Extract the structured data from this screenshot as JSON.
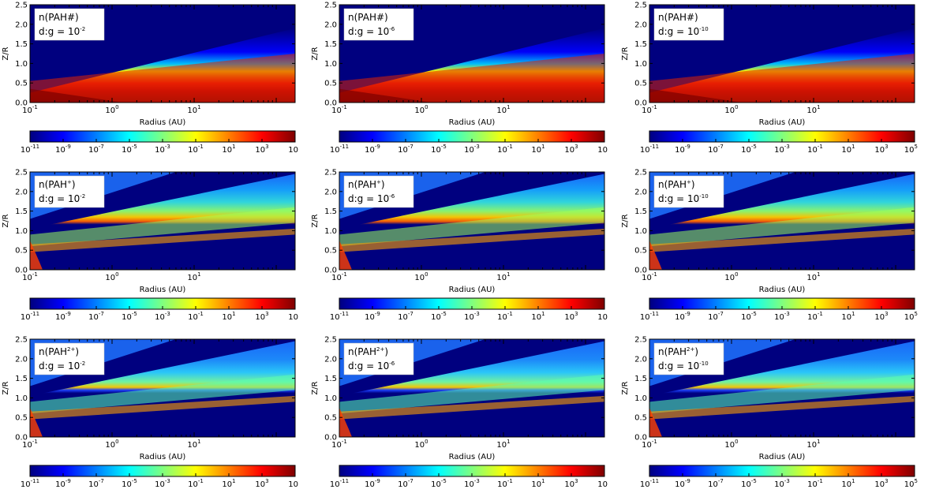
{
  "figure": {
    "xlabel": "Radius (AU)",
    "ylabel": "Z/R",
    "colormap": [
      "#00007f",
      "#0000ff",
      "#007fff",
      "#00ffff",
      "#7fff7f",
      "#ffff00",
      "#ff7f00",
      "#ff0000",
      "#7f0000"
    ]
  },
  "chart_data": [
    {
      "type": "heatmap",
      "row": 0,
      "col": 0,
      "species": "n(PAH#)",
      "dg": "d:g = 10",
      "dg_exp": "-2",
      "xlabel": "Radius (AU)",
      "ylabel": "Z/R",
      "x_scale": "log",
      "xlim": [
        0.1,
        170
      ],
      "ylim": [
        0,
        2.5
      ],
      "x_ticks": [
        {
          "b": "10",
          "e": "-1",
          "v": 0.1
        },
        {
          "b": "10",
          "e": "0",
          "v": 1
        },
        {
          "b": "10",
          "e": "1",
          "v": 10
        }
      ],
      "y_ticks": [
        "0.0",
        "0.5",
        "1.0",
        "1.5",
        "2.0",
        "2.5"
      ],
      "cbar_scale": "log",
      "cbar_range": [
        1e-11,
        100000.0
      ],
      "cbar_ticks": [
        {
          "b": "10",
          "e": "-11"
        },
        {
          "b": "10",
          "e": "-9"
        },
        {
          "b": "10",
          "e": "-7"
        },
        {
          "b": "10",
          "e": "-5"
        },
        {
          "b": "10",
          "e": "-3"
        },
        {
          "b": "10",
          "e": "-1"
        },
        {
          "b": "10",
          "e": "1"
        },
        {
          "b": "10",
          "e": "3"
        },
        {
          "b": "10",
          "e": ""
        }
      ]
    },
    {
      "type": "heatmap",
      "row": 0,
      "col": 1,
      "species": "n(PAH#)",
      "dg": "d:g = 10",
      "dg_exp": "-6",
      "xlabel": "Radius (AU)",
      "ylabel": "Z/R",
      "x_scale": "log",
      "xlim": [
        0.1,
        170
      ],
      "ylim": [
        0,
        2.5
      ],
      "x_ticks": [
        {
          "b": "10",
          "e": "-1",
          "v": 0.1
        },
        {
          "b": "10",
          "e": "0",
          "v": 1
        },
        {
          "b": "10",
          "e": "1",
          "v": 10
        }
      ],
      "y_ticks": [
        "0.0",
        "0.5",
        "1.0",
        "1.5",
        "2.0",
        "2.5"
      ],
      "cbar_scale": "log",
      "cbar_range": [
        1e-11,
        100000.0
      ],
      "cbar_ticks": [
        {
          "b": "10",
          "e": "-11"
        },
        {
          "b": "10",
          "e": "-9"
        },
        {
          "b": "10",
          "e": "-7"
        },
        {
          "b": "10",
          "e": "-5"
        },
        {
          "b": "10",
          "e": "-3"
        },
        {
          "b": "10",
          "e": "-1"
        },
        {
          "b": "10",
          "e": "1"
        },
        {
          "b": "10",
          "e": "3"
        },
        {
          "b": "10",
          "e": ""
        }
      ]
    },
    {
      "type": "heatmap",
      "row": 0,
      "col": 2,
      "species": "n(PAH#)",
      "dg": "d:g = 10",
      "dg_exp": "-10",
      "xlabel": "Radius (AU)",
      "ylabel": "Z/R",
      "x_scale": "log",
      "xlim": [
        0.1,
        170
      ],
      "ylim": [
        0,
        2.5
      ],
      "x_ticks": [
        {
          "b": "10",
          "e": "-1",
          "v": 0.1
        },
        {
          "b": "10",
          "e": "0",
          "v": 1
        },
        {
          "b": "10",
          "e": "1",
          "v": 10
        }
      ],
      "y_ticks": [
        "0.0",
        "0.5",
        "1.0",
        "1.5",
        "2.0",
        "2.5"
      ],
      "cbar_scale": "log",
      "cbar_range": [
        1e-11,
        100000.0
      ],
      "cbar_ticks": [
        {
          "b": "10",
          "e": "-11"
        },
        {
          "b": "10",
          "e": "-9"
        },
        {
          "b": "10",
          "e": "-7"
        },
        {
          "b": "10",
          "e": "-5"
        },
        {
          "b": "10",
          "e": "-3"
        },
        {
          "b": "10",
          "e": "-1"
        },
        {
          "b": "10",
          "e": "1"
        },
        {
          "b": "10",
          "e": "3"
        },
        {
          "b": "10",
          "e": "5"
        }
      ]
    },
    {
      "type": "heatmap",
      "row": 1,
      "col": 0,
      "species": "n(PAH",
      "species_sup": "+",
      "species_end": ")",
      "dg": "d:g = 10",
      "dg_exp": "-2",
      "xlabel": "Radius (AU)",
      "ylabel": "Z/R",
      "x_scale": "log",
      "xlim": [
        0.1,
        170
      ],
      "ylim": [
        0,
        2.5
      ],
      "x_ticks": [
        {
          "b": "10",
          "e": "-1",
          "v": 0.1
        },
        {
          "b": "10",
          "e": "0",
          "v": 1
        },
        {
          "b": "10",
          "e": "1",
          "v": 10
        }
      ],
      "y_ticks": [
        "0.0",
        "0.5",
        "1.0",
        "1.5",
        "2.0",
        "2.5"
      ],
      "cbar_scale": "log",
      "cbar_range": [
        1e-11,
        100000.0
      ],
      "cbar_ticks": [
        {
          "b": "10",
          "e": "-11"
        },
        {
          "b": "10",
          "e": "-9"
        },
        {
          "b": "10",
          "e": "-7"
        },
        {
          "b": "10",
          "e": "-5"
        },
        {
          "b": "10",
          "e": "-3"
        },
        {
          "b": "10",
          "e": "-1"
        },
        {
          "b": "10",
          "e": "1"
        },
        {
          "b": "10",
          "e": "3"
        },
        {
          "b": "10",
          "e": ""
        }
      ]
    },
    {
      "type": "heatmap",
      "row": 1,
      "col": 1,
      "species": "n(PAH",
      "species_sup": "+",
      "species_end": ")",
      "dg": "d:g = 10",
      "dg_exp": "-6",
      "xlabel": "Radius (AU)",
      "ylabel": "Z/R",
      "x_scale": "log",
      "xlim": [
        0.1,
        170
      ],
      "ylim": [
        0,
        2.5
      ],
      "x_ticks": [
        {
          "b": "10",
          "e": "-1",
          "v": 0.1
        },
        {
          "b": "10",
          "e": "0",
          "v": 1
        },
        {
          "b": "10",
          "e": "1",
          "v": 10
        }
      ],
      "y_ticks": [
        "0.0",
        "0.5",
        "1.0",
        "1.5",
        "2.0",
        "2.5"
      ],
      "cbar_scale": "log",
      "cbar_range": [
        1e-11,
        100000.0
      ],
      "cbar_ticks": [
        {
          "b": "10",
          "e": "-11"
        },
        {
          "b": "10",
          "e": "-9"
        },
        {
          "b": "10",
          "e": "-7"
        },
        {
          "b": "10",
          "e": "-5"
        },
        {
          "b": "10",
          "e": "-3"
        },
        {
          "b": "10",
          "e": "-1"
        },
        {
          "b": "10",
          "e": "1"
        },
        {
          "b": "10",
          "e": "3"
        },
        {
          "b": "10",
          "e": ""
        }
      ]
    },
    {
      "type": "heatmap",
      "row": 1,
      "col": 2,
      "species": "n(PAH",
      "species_sup": "+",
      "species_end": ")",
      "dg": "d:g = 10",
      "dg_exp": "-10",
      "xlabel": "Radius (AU)",
      "ylabel": "Z/R",
      "x_scale": "log",
      "xlim": [
        0.1,
        170
      ],
      "ylim": [
        0,
        2.5
      ],
      "x_ticks": [
        {
          "b": "10",
          "e": "-1",
          "v": 0.1
        },
        {
          "b": "10",
          "e": "0",
          "v": 1
        },
        {
          "b": "10",
          "e": "1",
          "v": 10
        }
      ],
      "y_ticks": [
        "0.0",
        "0.5",
        "1.0",
        "1.5",
        "2.0",
        "2.5"
      ],
      "cbar_scale": "log",
      "cbar_range": [
        1e-11,
        100000.0
      ],
      "cbar_ticks": [
        {
          "b": "10",
          "e": "-11"
        },
        {
          "b": "10",
          "e": "-9"
        },
        {
          "b": "10",
          "e": "-7"
        },
        {
          "b": "10",
          "e": "-5"
        },
        {
          "b": "10",
          "e": "-3"
        },
        {
          "b": "10",
          "e": "-1"
        },
        {
          "b": "10",
          "e": "1"
        },
        {
          "b": "10",
          "e": "3"
        },
        {
          "b": "10",
          "e": "5"
        }
      ]
    },
    {
      "type": "heatmap",
      "row": 2,
      "col": 0,
      "species": "n(PAH",
      "species_sup": "2+",
      "species_end": ")",
      "dg": "d:g = 10",
      "dg_exp": "-2",
      "xlabel": "Radius (AU)",
      "ylabel": "Z/R",
      "x_scale": "log",
      "xlim": [
        0.1,
        170
      ],
      "ylim": [
        0,
        2.5
      ],
      "x_ticks": [
        {
          "b": "10",
          "e": "-1",
          "v": 0.1
        },
        {
          "b": "10",
          "e": "0",
          "v": 1
        },
        {
          "b": "10",
          "e": "1",
          "v": 10
        }
      ],
      "y_ticks": [
        "0.0",
        "0.5",
        "1.0",
        "1.5",
        "2.0",
        "2.5"
      ],
      "cbar_scale": "log",
      "cbar_range": [
        1e-11,
        100000.0
      ],
      "cbar_ticks": [
        {
          "b": "10",
          "e": "-11"
        },
        {
          "b": "10",
          "e": "-9"
        },
        {
          "b": "10",
          "e": "-7"
        },
        {
          "b": "10",
          "e": "-5"
        },
        {
          "b": "10",
          "e": "-3"
        },
        {
          "b": "10",
          "e": "-1"
        },
        {
          "b": "10",
          "e": "1"
        },
        {
          "b": "10",
          "e": "3"
        },
        {
          "b": "10",
          "e": ""
        }
      ]
    },
    {
      "type": "heatmap",
      "row": 2,
      "col": 1,
      "species": "n(PAH",
      "species_sup": "2+",
      "species_end": ")",
      "dg": "d:g = 10",
      "dg_exp": "-6",
      "xlabel": "Radius (AU)",
      "ylabel": "Z/R",
      "x_scale": "log",
      "xlim": [
        0.1,
        170
      ],
      "ylim": [
        0,
        2.5
      ],
      "x_ticks": [
        {
          "b": "10",
          "e": "-1",
          "v": 0.1
        },
        {
          "b": "10",
          "e": "0",
          "v": 1
        },
        {
          "b": "10",
          "e": "1",
          "v": 10
        }
      ],
      "y_ticks": [
        "0.0",
        "0.5",
        "1.0",
        "1.5",
        "2.0",
        "2.5"
      ],
      "cbar_scale": "log",
      "cbar_range": [
        1e-11,
        100000.0
      ],
      "cbar_ticks": [
        {
          "b": "10",
          "e": "-11"
        },
        {
          "b": "10",
          "e": "-9"
        },
        {
          "b": "10",
          "e": "-7"
        },
        {
          "b": "10",
          "e": "-5"
        },
        {
          "b": "10",
          "e": "-3"
        },
        {
          "b": "10",
          "e": "-1"
        },
        {
          "b": "10",
          "e": "1"
        },
        {
          "b": "10",
          "e": "3"
        },
        {
          "b": "10",
          "e": ""
        }
      ]
    },
    {
      "type": "heatmap",
      "row": 2,
      "col": 2,
      "species": "n(PAH",
      "species_sup": "2+",
      "species_end": ")",
      "dg": "d:g = 10",
      "dg_exp": "-10",
      "xlabel": "Radius (AU)",
      "ylabel": "Z/R",
      "x_scale": "log",
      "xlim": [
        0.1,
        170
      ],
      "ylim": [
        0,
        2.5
      ],
      "x_ticks": [
        {
          "b": "10",
          "e": "-1",
          "v": 0.1
        },
        {
          "b": "10",
          "e": "0",
          "v": 1
        },
        {
          "b": "10",
          "e": "1",
          "v": 10
        }
      ],
      "y_ticks": [
        "0.0",
        "0.5",
        "1.0",
        "1.5",
        "2.0",
        "2.5"
      ],
      "cbar_scale": "log",
      "cbar_range": [
        1e-11,
        100000.0
      ],
      "cbar_ticks": [
        {
          "b": "10",
          "e": "-11"
        },
        {
          "b": "10",
          "e": "-9"
        },
        {
          "b": "10",
          "e": "-7"
        },
        {
          "b": "10",
          "e": "-5"
        },
        {
          "b": "10",
          "e": "-3"
        },
        {
          "b": "10",
          "e": "-1"
        },
        {
          "b": "10",
          "e": "1"
        },
        {
          "b": "10",
          "e": "3"
        },
        {
          "b": "10",
          "e": "5"
        }
      ]
    }
  ]
}
